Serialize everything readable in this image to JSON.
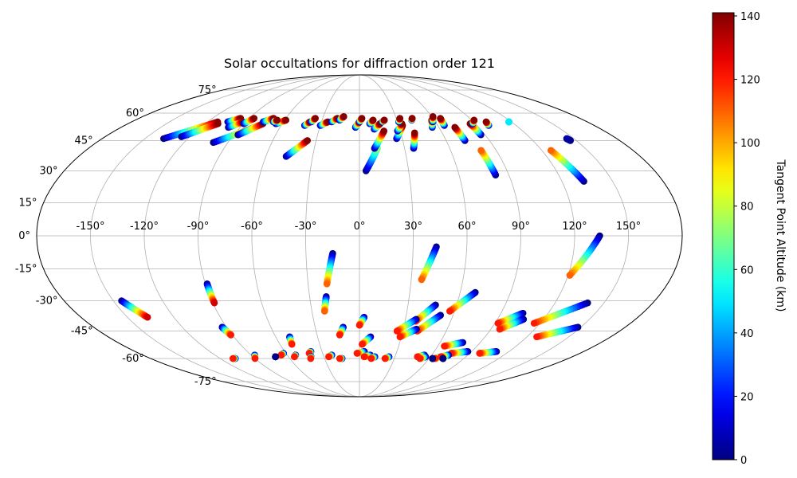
{
  "chart_data": {
    "type": "scatter",
    "projection": "mollweide",
    "title": "Solar occultations for diffraction order 121",
    "xticklabels": [
      "-150°",
      "-120°",
      "-90°",
      "-60°",
      "-30°",
      "0°",
      "30°",
      "60°",
      "90°",
      "120°",
      "150°"
    ],
    "xtick_values": [
      -150,
      -120,
      -90,
      -60,
      -30,
      0,
      30,
      60,
      90,
      120,
      150
    ],
    "yticklabels": [
      "-75°",
      "-60°",
      "-45°",
      "-30°",
      "-15°",
      "0°",
      "15°",
      "30°",
      "45°",
      "60°",
      "75°"
    ],
    "ytick_values": [
      -75,
      -60,
      -45,
      -30,
      -15,
      0,
      15,
      30,
      45,
      60,
      75
    ],
    "grid": true,
    "colorbar": {
      "label": "Tangent Point Altitude (km)",
      "colormap": "jet",
      "range": [
        0,
        141
      ],
      "ticks": [
        "0",
        "20",
        "40",
        "60",
        "80",
        "100",
        "120",
        "140"
      ],
      "tick_values": [
        0,
        20,
        40,
        60,
        80,
        100,
        120,
        140
      ]
    },
    "tracks": [
      {
        "lon_start": -137,
        "lat_start": 46,
        "lon_end": -112,
        "lat_end": 55,
        "alt_start": 0,
        "alt_end": 140
      },
      {
        "lon_start": -126,
        "lat_start": 47,
        "lon_end": -110,
        "lat_end": 54,
        "alt_start": 0,
        "alt_end": 140
      },
      {
        "lon_start": -104,
        "lat_start": 55,
        "lon_end": -97,
        "lat_end": 57,
        "alt_start": 0,
        "alt_end": 140
      },
      {
        "lon_start": -99,
        "lat_start": 52,
        "lon_end": -92,
        "lat_end": 55,
        "alt_start": 0,
        "alt_end": 140
      },
      {
        "lon_start": -100,
        "lat_start": 44,
        "lon_end": -79,
        "lat_end": 52,
        "alt_start": 0,
        "alt_end": 140
      },
      {
        "lon_start": -90,
        "lat_start": 54,
        "lon_end": -86,
        "lat_end": 57,
        "alt_start": 0,
        "alt_end": 140
      },
      {
        "lon_start": -87,
        "lat_start": 48,
        "lon_end": -75,
        "lat_end": 54,
        "alt_start": 0,
        "alt_end": 140
      },
      {
        "lon_start": -76,
        "lat_start": 55,
        "lon_end": -70,
        "lat_end": 57,
        "alt_start": 0,
        "alt_end": 140
      },
      {
        "lon_start": -65,
        "lat_start": 54,
        "lon_end": -59,
        "lat_end": 56,
        "alt_start": 0,
        "alt_end": 140
      },
      {
        "lon_start": -68,
        "lat_start": 55,
        "lon_end": -66,
        "lat_end": 56,
        "alt_start": 0,
        "alt_end": 140
      },
      {
        "lon_start": -47,
        "lat_start": 37,
        "lon_end": -36,
        "lat_end": 45,
        "alt_start": 0,
        "alt_end": 140
      },
      {
        "lon_start": -42,
        "lat_start": 53,
        "lon_end": -39,
        "lat_end": 55,
        "alt_start": 0,
        "alt_end": 140
      },
      {
        "lon_start": -38,
        "lat_start": 55,
        "lon_end": -36,
        "lat_end": 57,
        "alt_start": 0,
        "alt_end": 140
      },
      {
        "lon_start": -30,
        "lat_start": 53,
        "lon_end": -25,
        "lat_end": 55,
        "alt_start": 0,
        "alt_end": 140
      },
      {
        "lon_start": -22,
        "lat_start": 55,
        "lon_end": -18,
        "lat_end": 57,
        "alt_start": 0,
        "alt_end": 140
      },
      {
        "lon_start": -16,
        "lat_start": 56,
        "lon_end": -13,
        "lat_end": 58,
        "alt_start": 0,
        "alt_end": 140
      },
      {
        "lon_start": -3,
        "lat_start": 52,
        "lon_end": 0,
        "lat_end": 55,
        "alt_start": 0,
        "alt_end": 140
      },
      {
        "lon_start": 0,
        "lat_start": 55,
        "lon_end": 2,
        "lat_end": 57,
        "alt_start": 0,
        "alt_end": 140
      },
      {
        "lon_start": 4,
        "lat_start": 30,
        "lon_end": 12,
        "lat_end": 41,
        "alt_start": 0,
        "alt_end": 70
      },
      {
        "lon_start": 8,
        "lat_start": 54,
        "lon_end": 11,
        "lat_end": 56,
        "alt_start": 0,
        "alt_end": 140
      },
      {
        "lon_start": 11,
        "lat_start": 51,
        "lon_end": 16,
        "lat_end": 54,
        "alt_start": 0,
        "alt_end": 140
      },
      {
        "lon_start": 10,
        "lat_start": 41,
        "lon_end": 18,
        "lat_end": 50,
        "alt_start": 0,
        "alt_end": 140
      },
      {
        "lon_start": 18,
        "lat_start": 55,
        "lon_end": 20,
        "lat_end": 56,
        "alt_start": 0,
        "alt_end": 140
      },
      {
        "lon_start": 26,
        "lat_start": 46,
        "lon_end": 33,
        "lat_end": 53,
        "alt_start": 0,
        "alt_end": 140
      },
      {
        "lon_start": 28,
        "lat_start": 50,
        "lon_end": 33,
        "lat_end": 54,
        "alt_start": 0,
        "alt_end": 140
      },
      {
        "lon_start": 31,
        "lat_start": 55,
        "lon_end": 33,
        "lat_end": 57,
        "alt_start": 0,
        "alt_end": 140
      },
      {
        "lon_start": 36,
        "lat_start": 41,
        "lon_end": 40,
        "lat_end": 49,
        "alt_start": 0,
        "alt_end": 140
      },
      {
        "lon_start": 42,
        "lat_start": 56,
        "lon_end": 43,
        "lat_end": 57,
        "alt_start": 0,
        "alt_end": 140
      },
      {
        "lon_start": 55,
        "lat_start": 52,
        "lon_end": 58,
        "lat_end": 56,
        "alt_start": 0,
        "alt_end": 140
      },
      {
        "lon_start": 58,
        "lat_start": 55,
        "lon_end": 61,
        "lat_end": 58,
        "alt_start": 0,
        "alt_end": 140
      },
      {
        "lon_start": 65,
        "lat_start": 53,
        "lon_end": 66,
        "lat_end": 57,
        "alt_start": 0,
        "alt_end": 140
      },
      {
        "lon_start": 73,
        "lat_start": 45,
        "lon_end": 72,
        "lat_end": 52,
        "alt_start": 0,
        "alt_end": 140
      },
      {
        "lon_start": 87,
        "lat_start": 48,
        "lon_end": 86,
        "lat_end": 54,
        "alt_start": 0,
        "alt_end": 140
      },
      {
        "lon_start": 88,
        "lat_start": 54,
        "lon_end": 92,
        "lat_end": 56,
        "alt_start": 0,
        "alt_end": 140
      },
      {
        "lon_start": 99,
        "lat_start": 53,
        "lon_end": 100,
        "lat_end": 55,
        "alt_start": 0,
        "alt_end": 140
      },
      {
        "lon_start": 82,
        "lat_start": 28,
        "lon_end": 80,
        "lat_end": 40,
        "alt_start": 0,
        "alt_end": 110
      },
      {
        "lon_start": 133,
        "lat_start": 25,
        "lon_end": 126,
        "lat_end": 40,
        "alt_start": 0,
        "alt_end": 110
      },
      {
        "lon_start": 146,
        "lat_start": 45,
        "lon_end": 145,
        "lat_end": 46,
        "alt_start": 0,
        "alt_end": 5
      },
      {
        "lon_start": 118,
        "lat_start": 55,
        "lon_end": 118,
        "lat_end": 55,
        "alt_start": 50,
        "alt_end": 50
      },
      {
        "lon_start": -15,
        "lat_start": -8,
        "lon_end": -19,
        "lat_end": -22,
        "alt_start": 0,
        "alt_end": 110
      },
      {
        "lon_start": -20,
        "lat_start": -28,
        "lon_end": -22,
        "lat_end": -35,
        "alt_start": 0,
        "alt_end": 110
      },
      {
        "lon_start": 43,
        "lat_start": -5,
        "lon_end": 36,
        "lat_end": -20,
        "alt_start": 0,
        "alt_end": 110
      },
      {
        "lon_start": 134,
        "lat_start": 0,
        "lon_end": 121,
        "lat_end": -18,
        "alt_start": 0,
        "alt_end": 110
      },
      {
        "lon_start": -89,
        "lat_start": -22,
        "lon_end": -89,
        "lat_end": -31,
        "alt_start": 0,
        "alt_end": 130
      },
      {
        "lon_start": -145,
        "lat_start": -30,
        "lon_end": -137,
        "lat_end": -38,
        "alt_start": 0,
        "alt_end": 130
      },
      {
        "lon_start": 69,
        "lat_start": -26,
        "lon_end": 57,
        "lat_end": -35,
        "alt_start": 0,
        "alt_end": 120
      },
      {
        "lon_start": 47,
        "lat_start": -32,
        "lon_end": 37,
        "lat_end": -40,
        "alt_start": 0,
        "alt_end": 120
      },
      {
        "lon_start": 52,
        "lat_start": -37,
        "lon_end": 40,
        "lat_end": -45,
        "alt_start": 0,
        "alt_end": 120
      },
      {
        "lon_start": 39,
        "lat_start": -44,
        "lon_end": 29,
        "lat_end": -48,
        "alt_start": 0,
        "alt_end": 120
      },
      {
        "lon_start": 37,
        "lat_start": -39,
        "lon_end": 26,
        "lat_end": -45,
        "alt_start": 0,
        "alt_end": 120
      },
      {
        "lon_start": 104,
        "lat_start": -36,
        "lon_end": 92,
        "lat_end": -41,
        "alt_start": 0,
        "alt_end": 120
      },
      {
        "lon_start": 107,
        "lat_start": -39,
        "lon_end": 96,
        "lat_end": -44,
        "alt_start": 0,
        "alt_end": 120
      },
      {
        "lon_start": 140,
        "lat_start": -31,
        "lon_end": 116,
        "lat_end": -41,
        "alt_start": 0,
        "alt_end": 120
      },
      {
        "lon_start": 148,
        "lat_start": -43,
        "lon_end": 127,
        "lat_end": -48,
        "alt_start": 0,
        "alt_end": 120
      },
      {
        "lon_start": 3,
        "lat_start": -38,
        "lon_end": 0,
        "lat_end": -42,
        "alt_start": 0,
        "alt_end": 120
      },
      {
        "lon_start": -11,
        "lat_start": -43,
        "lon_end": -14,
        "lat_end": -47,
        "alt_start": 0,
        "alt_end": 120
      },
      {
        "lon_start": 8,
        "lat_start": -48,
        "lon_end": 2,
        "lat_end": -52,
        "alt_start": 0,
        "alt_end": 120
      },
      {
        "lon_start": -93,
        "lat_start": -43,
        "lon_end": -91,
        "lat_end": -47,
        "alt_start": 0,
        "alt_end": 120
      },
      {
        "lon_start": -50,
        "lat_start": -48,
        "lon_end": -51,
        "lat_end": -52,
        "alt_start": 0,
        "alt_end": 120
      },
      {
        "lon_start": 77,
        "lat_start": -51,
        "lon_end": 65,
        "lat_end": -53,
        "alt_start": 0,
        "alt_end": 120
      },
      {
        "lon_start": 87,
        "lat_start": -56,
        "lon_end": 75,
        "lat_end": -57,
        "alt_start": 0,
        "alt_end": 120
      },
      {
        "lon_start": 110,
        "lat_start": -56,
        "lon_end": 98,
        "lat_end": -57,
        "alt_start": 0,
        "alt_end": 120
      },
      {
        "lon_start": -107,
        "lat_start": -60,
        "lon_end": -109,
        "lat_end": -60,
        "alt_start": 0,
        "alt_end": 120
      },
      {
        "lon_start": -87,
        "lat_start": -58,
        "lon_end": -90,
        "lat_end": -60,
        "alt_start": 0,
        "alt_end": 120
      },
      {
        "lon_start": -62,
        "lat_start": -57,
        "lon_end": -65,
        "lat_end": -58,
        "alt_start": 0,
        "alt_end": 120
      },
      {
        "lon_start": -53,
        "lat_start": -58,
        "lon_end": -55,
        "lat_end": -59,
        "alt_start": 0,
        "alt_end": 120
      },
      {
        "lon_start": -39,
        "lat_start": -56,
        "lon_end": -41,
        "lat_end": -57,
        "alt_start": 0,
        "alt_end": 120
      },
      {
        "lon_start": -41,
        "lat_start": -59,
        "lon_end": -42,
        "lat_end": -60,
        "alt_start": 0,
        "alt_end": 120
      },
      {
        "lon_start": -23,
        "lat_start": -58,
        "lon_end": -26,
        "lat_end": -59,
        "alt_start": 0,
        "alt_end": 120
      },
      {
        "lon_start": -15,
        "lat_start": -60,
        "lon_end": -17,
        "lat_end": -60,
        "alt_start": 0,
        "alt_end": 120
      },
      {
        "lon_start": 4,
        "lat_start": -56,
        "lon_end": -2,
        "lat_end": -57,
        "alt_start": 0,
        "alt_end": 120
      },
      {
        "lon_start": 9,
        "lat_start": -58,
        "lon_end": 4,
        "lat_end": -59,
        "alt_start": 0,
        "alt_end": 120
      },
      {
        "lon_start": 13,
        "lat_start": -59,
        "lon_end": 10,
        "lat_end": -60,
        "alt_start": 0,
        "alt_end": 120
      },
      {
        "lon_start": 25,
        "lat_start": -59,
        "lon_end": 22,
        "lat_end": -60,
        "alt_start": 0,
        "alt_end": 120
      },
      {
        "lon_start": 54,
        "lat_start": -58,
        "lon_end": 49,
        "lat_end": -59,
        "alt_start": 0,
        "alt_end": 120
      },
      {
        "lon_start": 56,
        "lat_start": -59,
        "lon_end": 52,
        "lat_end": -60,
        "alt_start": 0,
        "alt_end": 120
      },
      {
        "lon_start": 69,
        "lat_start": -59,
        "lon_end": 65,
        "lat_end": -60,
        "alt_start": 0,
        "alt_end": 120
      },
      {
        "lon_start": 74,
        "lat_start": -58,
        "lon_end": 69,
        "lat_end": -59,
        "alt_start": 0,
        "alt_end": 120
      },
      {
        "lon_start": 72,
        "lat_start": -60,
        "lon_end": 72,
        "lat_end": -60,
        "alt_start": 0,
        "alt_end": 0
      },
      {
        "lon_start": 63,
        "lat_start": -60,
        "lon_end": 63,
        "lat_end": -60,
        "alt_start": 0,
        "alt_end": 0
      },
      {
        "lon_start": -71,
        "lat_start": -59,
        "lon_end": -71,
        "lat_end": -59,
        "alt_start": 0,
        "alt_end": 0
      }
    ]
  }
}
